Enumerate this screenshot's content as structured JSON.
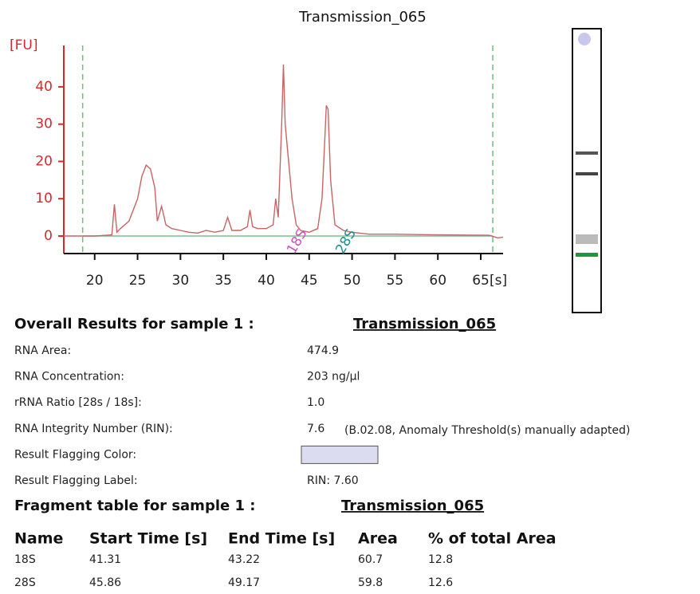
{
  "chart_data": {
    "type": "line",
    "title": "Transmission_065",
    "ylabel": "[FU]",
    "xlabel": "[s]",
    "x": [
      16.4,
      20,
      22.0,
      22.3,
      22.6,
      23,
      24,
      25,
      25.5,
      26,
      26.5,
      27,
      27.3,
      27.8,
      28.3,
      29,
      30,
      31,
      32,
      33,
      34,
      35,
      35.5,
      36,
      37,
      37.8,
      38.1,
      38.4,
      39,
      40,
      40.8,
      41.1,
      41.4,
      41.8,
      42,
      42.2,
      42.6,
      43,
      43.5,
      44,
      45,
      46,
      46.5,
      46.8,
      47,
      47.2,
      47.5,
      48,
      49,
      50,
      52,
      55,
      60,
      66,
      67,
      67.6
    ],
    "values": [
      0,
      0,
      0.3,
      8.5,
      1,
      2,
      4,
      10,
      16,
      19,
      18,
      13,
      4,
      8,
      3,
      2,
      1.5,
      1,
      0.8,
      1.5,
      1,
      1.5,
      5,
      1.5,
      1.5,
      2.5,
      7,
      2.5,
      2,
      2,
      3,
      10,
      5,
      30,
      46,
      30,
      20,
      10,
      3,
      1.5,
      1,
      2,
      10,
      25,
      35,
      34,
      15,
      3,
      1.5,
      1,
      0.5,
      0.5,
      0.3,
      0.2,
      -0.5,
      -0.3
    ],
    "color": "#c86464",
    "xlim": [
      16.4,
      67.6
    ],
    "ylim": [
      -4.7,
      51.1
    ],
    "xticks": [
      20,
      25,
      30,
      35,
      40,
      45,
      50,
      55,
      60,
      65
    ],
    "yticks": [
      0,
      10,
      20,
      30,
      40
    ],
    "vlines": [
      18.6,
      66.4
    ],
    "annotations": [
      {
        "text": "18S",
        "x": 43.6,
        "y": -1.5,
        "color": "#d050c0"
      },
      {
        "text": "28S",
        "x": 49.3,
        "y": -1.5,
        "color": "#208c8c"
      }
    ]
  },
  "results": {
    "heading": "Overall Results for sample 1  :",
    "sample": "Transmission_065",
    "rows": [
      [
        "RNA Area:",
        "474.9"
      ],
      [
        "RNA Concentration:",
        "203 ng/µl"
      ],
      [
        "rRNA Ratio [28s / 18s]:",
        "1.0"
      ],
      [
        "RNA Integrity Number (RIN):",
        "7.6"
      ],
      [
        "Result Flagging Color:"
      ],
      [
        "Result Flagging Label:",
        "RIN: 7.60"
      ]
    ],
    "rin_note": "(B.02.08, Anomaly Threshold(s) manually adapted)",
    "flag_color": "#dcdcf0"
  },
  "fragments": {
    "heading": "Fragment table for sample 1  :",
    "sample": "Transmission_065",
    "columns": [
      "Name",
      "Start Time [s]",
      "End Time [s]",
      "Area",
      "% of total Area"
    ],
    "rows": [
      [
        "18S",
        "41.31",
        "43.22",
        "60.7",
        "12.8"
      ],
      [
        "28S",
        "45.86",
        "49.17",
        "59.8",
        "12.6"
      ]
    ]
  }
}
